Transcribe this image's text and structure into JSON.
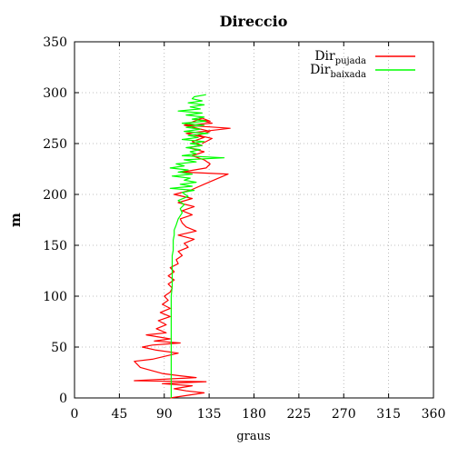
{
  "chart_data": {
    "type": "line",
    "title": "Direccio",
    "xlabel": "graus",
    "ylabel": "m",
    "xlim": [
      0,
      360
    ],
    "ylim": [
      0,
      350
    ],
    "xticks": [
      0,
      45,
      90,
      135,
      180,
      225,
      270,
      315,
      360
    ],
    "yticks": [
      0,
      50,
      100,
      150,
      200,
      250,
      300,
      350
    ],
    "grid": true,
    "legend_position": "top-right",
    "series": [
      {
        "name": "Dir",
        "name_sub": "pujada",
        "color": "#ff0000",
        "x": [
          96,
          130,
          112,
          100,
          118,
          88,
          132,
          60,
          122,
          104,
          88,
          66,
          60,
          78,
          104,
          82,
          68,
          78,
          106,
          80,
          96,
          72,
          92,
          82,
          92,
          84,
          96,
          86,
          96,
          88,
          94,
          90,
          96,
          98,
          94,
          100,
          94,
          100,
          96,
          104,
          102,
          108,
          104,
          114,
          110,
          120,
          104,
          122,
          112,
          108,
          106,
          118,
          108,
          120,
          104,
          118,
          100,
          116,
          130,
          154,
          108,
          132,
          136,
          130,
          118,
          130,
          114,
          128,
          118,
          130,
          112,
          156,
          110,
          138,
          120,
          136,
          128,
          110,
          136,
          124,
          138,
          128
        ],
        "y": [
          0,
          5,
          7,
          9,
          12,
          14,
          16,
          17,
          20,
          22,
          24,
          30,
          36,
          38,
          44,
          47,
          50,
          52,
          54,
          56,
          58,
          62,
          64,
          68,
          72,
          76,
          80,
          84,
          88,
          92,
          96,
          100,
          104,
          108,
          112,
          116,
          120,
          124,
          128,
          132,
          136,
          140,
          144,
          148,
          152,
          156,
          160,
          164,
          168,
          172,
          176,
          180,
          184,
          188,
          192,
          196,
          200,
          204,
          210,
          220,
          222,
          226,
          230,
          234,
          238,
          242,
          246,
          248,
          252,
          256,
          260,
          265,
          268,
          270,
          274,
          272,
          275,
          268,
          262,
          258,
          255,
          250
        ]
      },
      {
        "name": "Dir",
        "name_sub": "baixada",
        "color": "#00ff00",
        "x": [
          97,
          97,
          97,
          97,
          97,
          97,
          98,
          98,
          98,
          98,
          99,
          99,
          99,
          100,
          100,
          102,
          104,
          108,
          106,
          110,
          104,
          114,
          108,
          120,
          96,
          118,
          106,
          122,
          110,
          116,
          98,
          118,
          104,
          114,
          96,
          110,
          102,
          122,
          110,
          150,
          108,
          122,
          116,
          126,
          112,
          128,
          116,
          130,
          108,
          124,
          114,
          134,
          110,
          126,
          112,
          130,
          108,
          132,
          118,
          130,
          112,
          128,
          104,
          126,
          116,
          130,
          114,
          128,
          118,
          120,
          132
        ],
        "y": [
          0,
          20,
          40,
          60,
          80,
          100,
          110,
          120,
          130,
          140,
          145,
          150,
          155,
          160,
          165,
          170,
          176,
          182,
          186,
          190,
          194,
          198,
          202,
          204,
          206,
          208,
          210,
          212,
          214,
          216,
          218,
          220,
          222,
          224,
          226,
          228,
          230,
          232,
          234,
          236,
          238,
          240,
          242,
          244,
          246,
          248,
          250,
          252,
          254,
          256,
          258,
          260,
          262,
          264,
          266,
          268,
          270,
          272,
          274,
          276,
          278,
          280,
          282,
          284,
          286,
          288,
          290,
          292,
          294,
          296,
          298
        ]
      }
    ]
  }
}
